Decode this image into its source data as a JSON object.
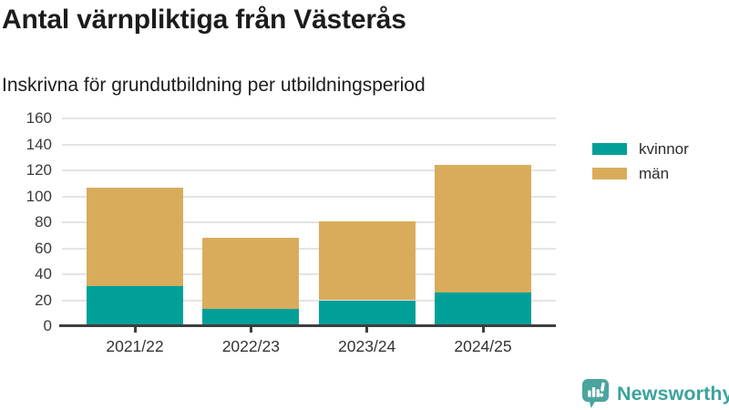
{
  "header": {
    "title": "Antal värnpliktiga från Västerås",
    "subtitle": "Inskrivna för grundutbildning per utbildningsperiod"
  },
  "chart_data": {
    "type": "bar",
    "stacked": true,
    "title": "Antal värnpliktiga från Västerås",
    "subtitle": "Inskrivna för grundutbildning per utbildningsperiod",
    "categories": [
      "2021/22",
      "2022/23",
      "2023/24",
      "2024/25"
    ],
    "series": [
      {
        "name": "kvinnor",
        "color": "#00a099",
        "values": [
          31,
          13,
          20,
          26
        ]
      },
      {
        "name": "män",
        "color": "#d9ac5c",
        "values": [
          76,
          55,
          61,
          98
        ]
      }
    ],
    "stack_totals": [
      107,
      68,
      81,
      124
    ],
    "xlabel": "",
    "ylabel": "",
    "ylim": [
      0,
      160
    ],
    "yticks": [
      0,
      20,
      40,
      60,
      80,
      100,
      120,
      140,
      160
    ],
    "grid": "horizontal",
    "legend_position": "right"
  },
  "legend": {
    "items": [
      {
        "label": "kvinnor",
        "color": "#00a099"
      },
      {
        "label": "män",
        "color": "#d9ac5c"
      }
    ]
  },
  "branding": {
    "name": "Newsworthy",
    "text_color": "#3aa39b",
    "icon_color": "#4aa59e",
    "icon": "bar-chart-speech-bubble-icon"
  },
  "colors": {
    "axis": "#3e3e3e",
    "grid": "#e4e4e4",
    "title_text": "#1c1c1c",
    "tick_text": "#3a3a3a"
  }
}
